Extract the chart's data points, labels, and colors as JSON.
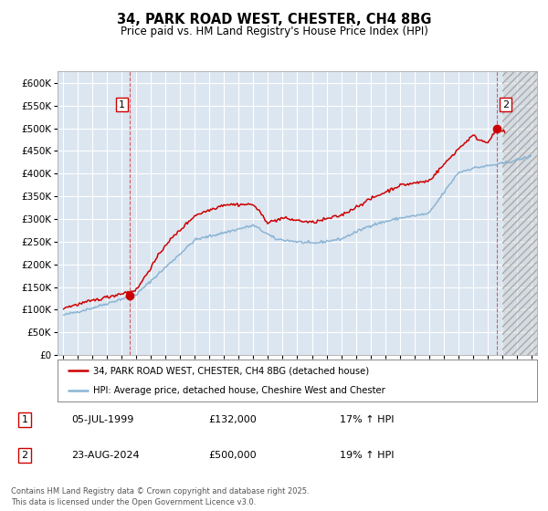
{
  "title": "34, PARK ROAD WEST, CHESTER, CH4 8BG",
  "subtitle": "Price paid vs. HM Land Registry's House Price Index (HPI)",
  "ylim": [
    0,
    625000
  ],
  "yticks": [
    0,
    50000,
    100000,
    150000,
    200000,
    250000,
    300000,
    350000,
    400000,
    450000,
    500000,
    550000,
    600000
  ],
  "xlim_start": 1994.6,
  "xlim_end": 2027.4,
  "bg_color": "#dce6f1",
  "grid_color": "#ffffff",
  "red_line_color": "#cc0000",
  "blue_line_color": "#8ab4d4",
  "purchase1_year": 1999.52,
  "purchase1_price": 132000,
  "purchase2_year": 2024.64,
  "purchase2_price": 500000,
  "legend_line1": "34, PARK ROAD WEST, CHESTER, CH4 8BG (detached house)",
  "legend_line2": "HPI: Average price, detached house, Cheshire West and Chester",
  "purchase1_date": "05-JUL-1999",
  "purchase1_label": "£132,000",
  "purchase1_hpi": "17% ↑ HPI",
  "purchase2_date": "23-AUG-2024",
  "purchase2_label": "£500,000",
  "purchase2_hpi": "19% ↑ HPI",
  "footer": "Contains HM Land Registry data © Crown copyright and database right 2025.\nThis data is licensed under the Open Government Licence v3.0."
}
